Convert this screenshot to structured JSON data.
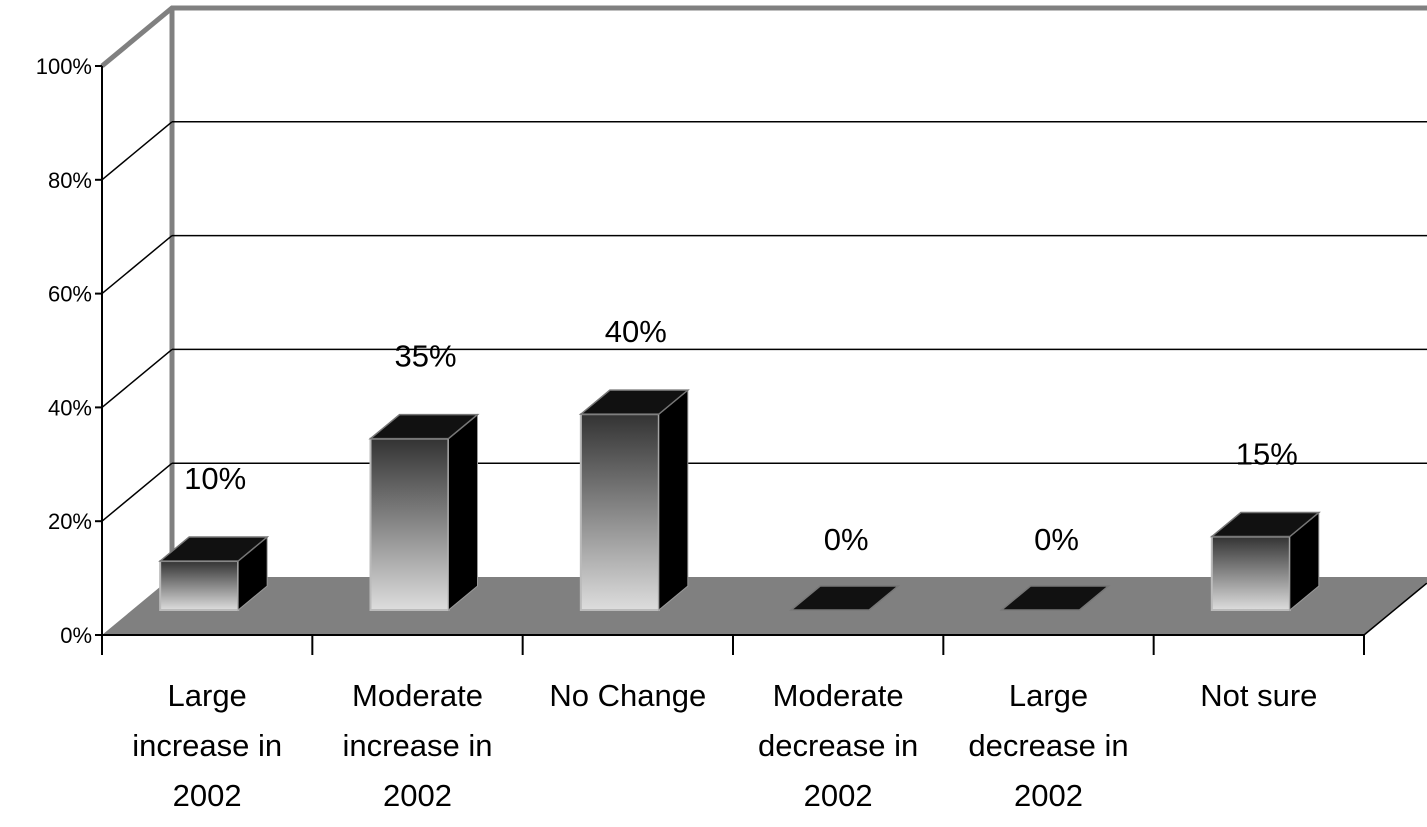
{
  "chart_data": {
    "type": "bar",
    "title": "",
    "xlabel": "",
    "ylabel": "",
    "ylim": [
      0,
      100
    ],
    "yticks": [
      "0%",
      "20%",
      "40%",
      "60%",
      "80%",
      "100%"
    ],
    "categories": [
      [
        "Large",
        "increase in",
        "2002"
      ],
      [
        "Moderate",
        "increase in",
        "2002"
      ],
      [
        "No Change"
      ],
      [
        "Moderate",
        "decrease in",
        "2002"
      ],
      [
        "Large",
        "decrease in",
        "2002"
      ],
      [
        "Not sure"
      ]
    ],
    "values": [
      10,
      35,
      40,
      0,
      0,
      15
    ],
    "data_labels": [
      "10%",
      "35%",
      "40%",
      "0%",
      "0%",
      "15%"
    ],
    "grid": true,
    "legend": "none",
    "style": "3d-column",
    "colors": {
      "floor": "#808080",
      "walls": "#808080",
      "bar_side": "#000000",
      "bar_top": "#111111",
      "bar_gradient_top": "#333333",
      "bar_gradient_bottom": "#dddddd"
    }
  }
}
